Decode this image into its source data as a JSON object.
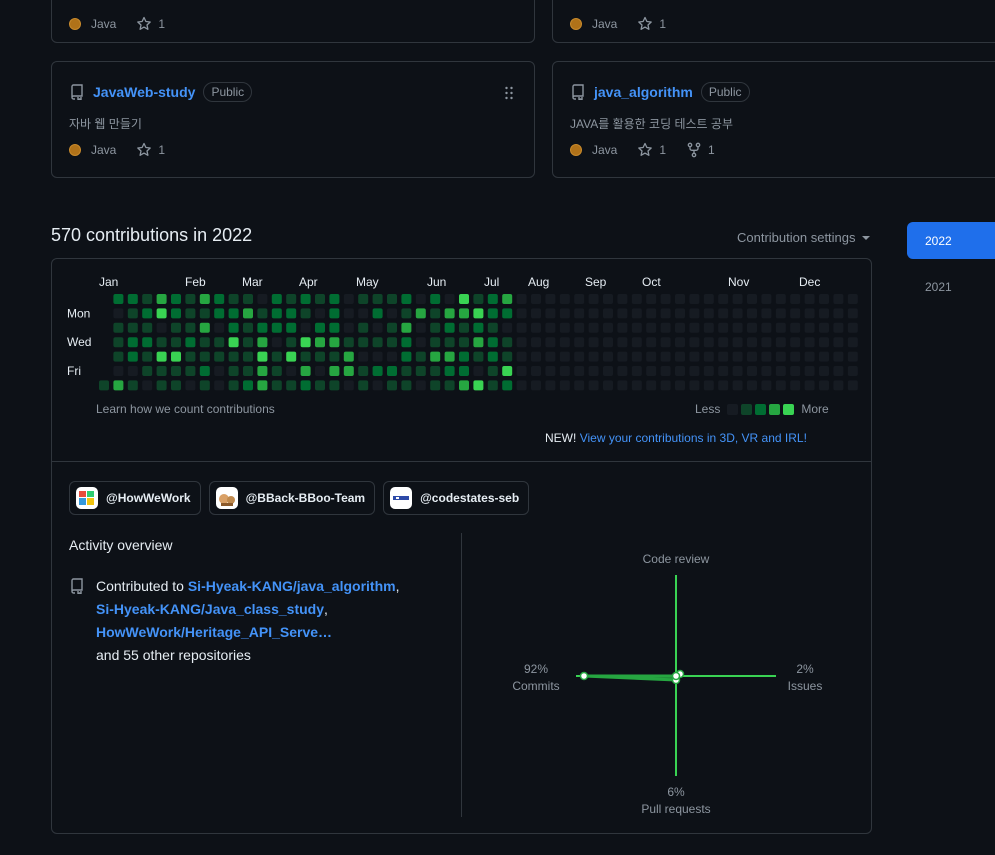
{
  "top_cards": [
    {
      "language": "Java",
      "stars": "1"
    },
    {
      "language": "Java",
      "stars": "1"
    }
  ],
  "repos": [
    {
      "name": "JavaWeb-study",
      "visibility": "Public",
      "description": "자바 웹 만들기",
      "language": "Java",
      "stars": "1"
    },
    {
      "name": "java_algorithm",
      "visibility": "Public",
      "description": "JAVA를 활용한 코딩 테스트 공부",
      "language": "Java",
      "stars": "1",
      "forks": "1"
    }
  ],
  "contributions": {
    "heading": "570 contributions in 2022",
    "settings_label": "Contribution settings",
    "months": [
      "Jan",
      "Feb",
      "Mar",
      "Apr",
      "May",
      "Jun",
      "Jul",
      "Aug",
      "Sep",
      "Oct",
      "Nov",
      "Dec"
    ],
    "day_labels": [
      "Mon",
      "Wed",
      "Fri"
    ],
    "learn_link": "Learn how we count contributions",
    "legend_less": "Less",
    "legend_more": "More",
    "new_label": "NEW!",
    "new_link": "View your contributions in 3D, VR and IRL!",
    "colors": {
      "empty": "#161b22",
      "l1": "#0e4429",
      "l2": "#006d32",
      "l3": "#26a641",
      "l4": "#39d353"
    }
  },
  "organizations": [
    {
      "name": "@HowWeWork",
      "icon": "howwework-avatar-icon"
    },
    {
      "name": "@BBack-BBoo-Team",
      "icon": "bback-bboo-avatar-icon"
    },
    {
      "name": "@codestates-seb",
      "icon": "codestates-avatar-icon"
    }
  ],
  "activity": {
    "title": "Activity overview",
    "contributed_prefix": "Contributed to",
    "repos": [
      "Si-Hyeak-KANG/java_algorithm",
      "Si-Hyeak-KANG/Java_class_study",
      "HowWeWork/Heritage_API_Serve…"
    ],
    "others": "and 55 other repositories",
    "overview": {
      "code_review_label": "Code review",
      "commits_pct": "92%",
      "commits_label": "Commits",
      "issues_pct": "2%",
      "issues_label": "Issues",
      "pr_pct": "6%",
      "pr_label": "Pull requests",
      "commits_value": 92,
      "issues_value": 2,
      "pr_value": 6,
      "code_review_value": 0
    }
  },
  "years": [
    "2022",
    "2021"
  ]
}
